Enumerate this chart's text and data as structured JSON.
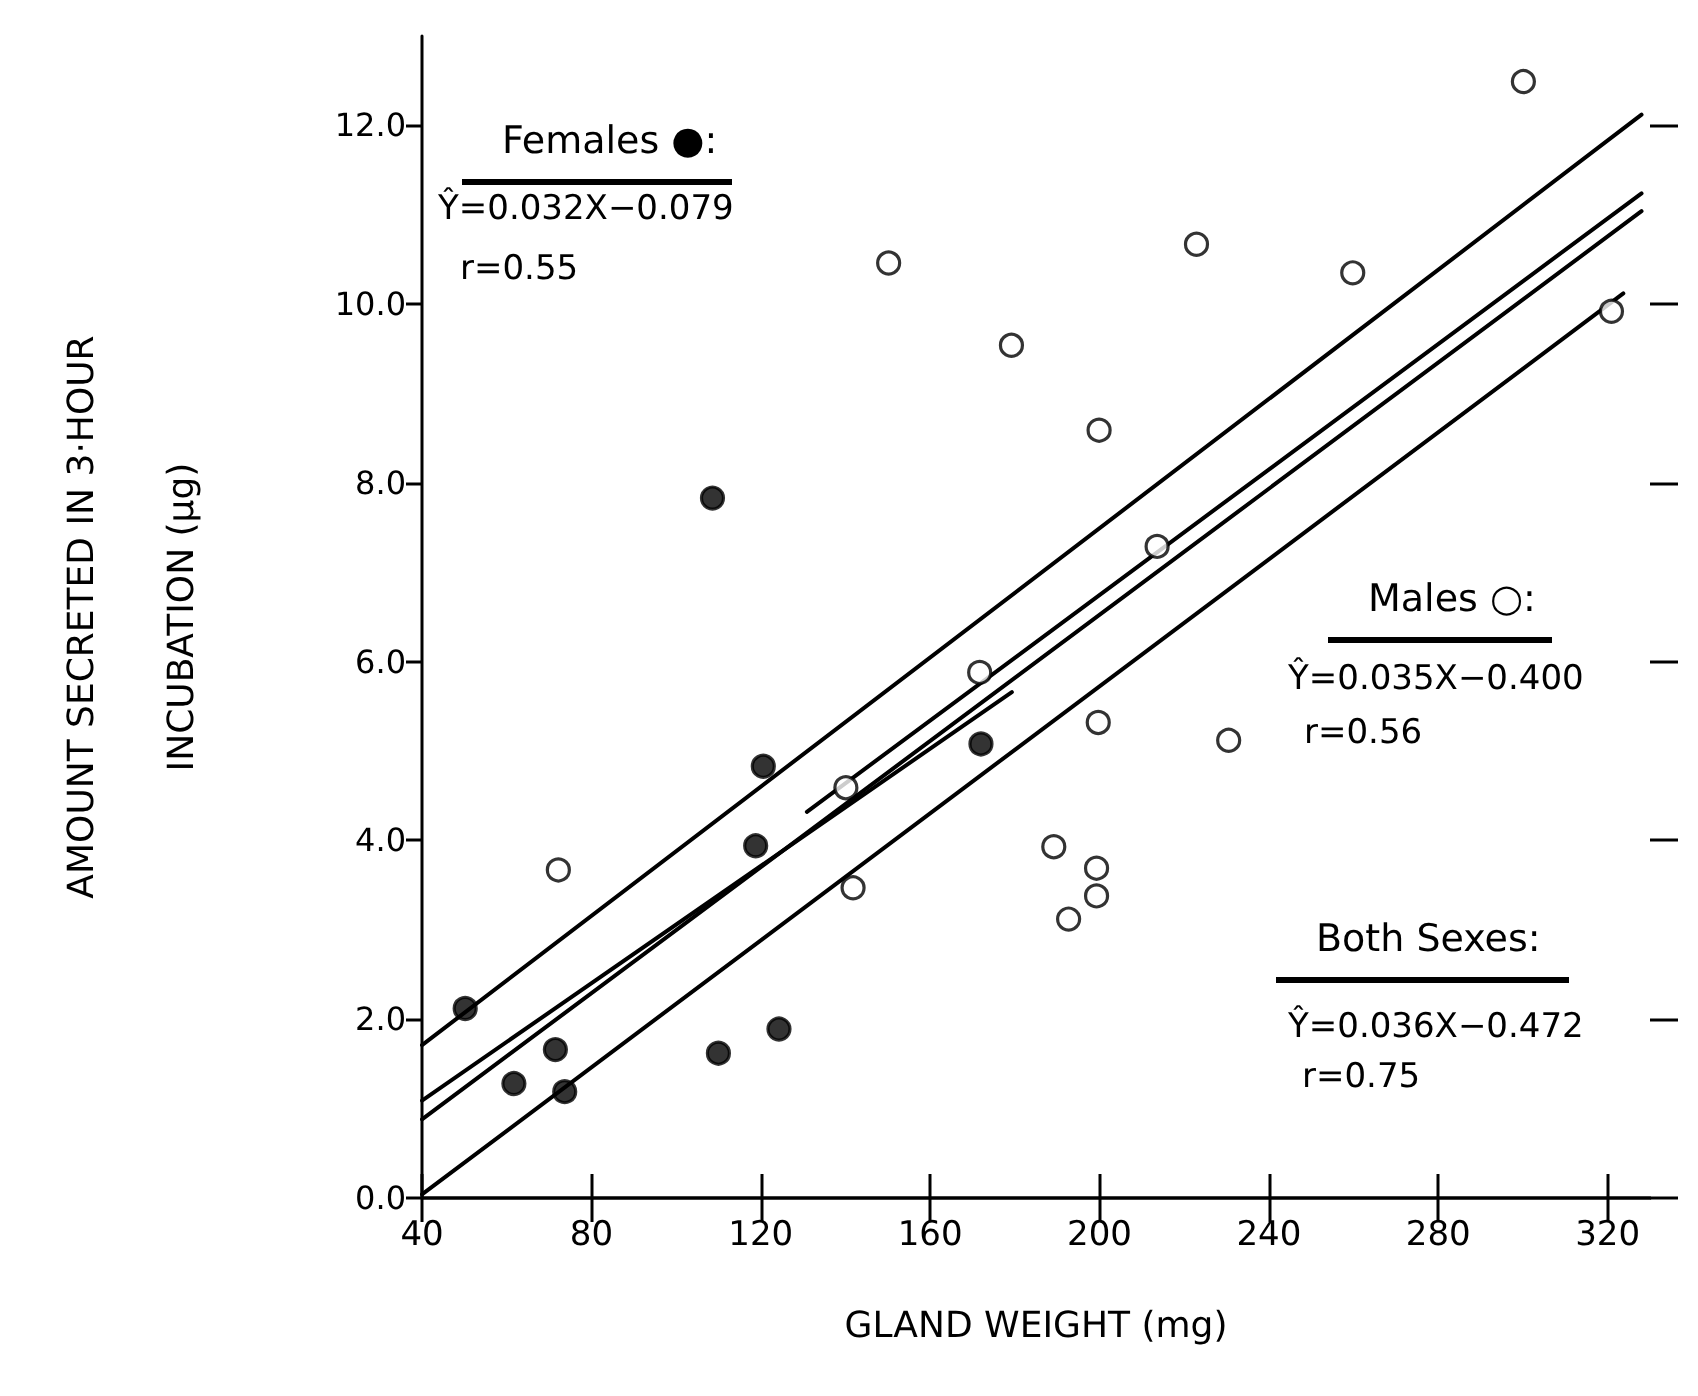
{
  "chart_data": {
    "type": "scatter",
    "xlabel": "GLAND WEIGHT (mg)",
    "ylabel": "AMOUNT SECRETED IN 3·HOUR\nINCUBATION (µg)",
    "xlim": [
      40,
      330
    ],
    "xticks": [
      40,
      80,
      120,
      160,
      200,
      240,
      280,
      320
    ],
    "ylim": [
      0,
      13
    ],
    "yticks": [
      {
        "value": 0,
        "label": "0.0"
      },
      {
        "value": 2,
        "label": "2.0"
      },
      {
        "value": 4,
        "label": "4.0"
      },
      {
        "value": 6,
        "label": "6.0"
      },
      {
        "value": 8,
        "label": "8.0"
      },
      {
        "value": 10,
        "label": "10.0"
      },
      {
        "value": 12,
        "label": "12.0"
      }
    ],
    "grid": false,
    "marker": "circle",
    "series": [
      {
        "color": "#000000",
        "x": [
          50.2,
          61.7,
          71.5,
          73.7,
          110,
          124.3,
          118.8,
          120.6,
          172,
          108.6
        ],
        "values": [
          2.12,
          1.28,
          1.66,
          1.19,
          1.62,
          1.89,
          3.94,
          4.83,
          5.08,
          7.83
        ]
      },
      {
        "color": "#ffffff",
        "x": [
          72.2,
          140.1,
          141.8,
          171.7,
          150.2,
          179.2,
          222.9,
          259.8,
          300.1,
          320.9,
          199.9,
          213.6,
          199.7,
          230.5,
          189.2,
          199.3,
          199.3,
          192.7
        ],
        "values": [
          3.67,
          4.59,
          3.47,
          5.88,
          10.46,
          9.54,
          10.67,
          10.35,
          12.49,
          9.92,
          8.59,
          7.29,
          5.32,
          5.12,
          3.93,
          3.69,
          3.38,
          3.12
        ]
      },
      {
        "type": "line",
        "color": "#000000",
        "marker": "none",
        "x": [
          40,
          179.3
        ],
        "values": [
          1.09,
          5.66
        ]
      },
      {
        "type": "line",
        "color": "#000000",
        "marker": "none",
        "x": [
          130.9,
          328
        ],
        "values": [
          4.32,
          11.24
        ]
      },
      {
        "type": "line",
        "color": "#000000",
        "marker": "none",
        "x": [
          40,
          328
        ],
        "values": [
          0.88,
          11.04
        ]
      },
      {
        "type": "line",
        "color": "#000000",
        "marker": "none",
        "x": [
          40,
          328
        ],
        "values": [
          1.71,
          12.12
        ]
      },
      {
        "type": "line",
        "color": "#000000",
        "marker": "none",
        "x": [
          40,
          323.7
        ],
        "values": [
          0.04,
          10.12
        ]
      }
    ],
    "annotations": [
      "Females ●:",
      "Ŷ=0.032X−0.079",
      "r=0.55",
      "Males ○:",
      "Ŷ=0.035X−0.400",
      "r=0.56",
      "Both Sexes:",
      "Ŷ=0.036X−0.472",
      "r=0.75"
    ]
  }
}
